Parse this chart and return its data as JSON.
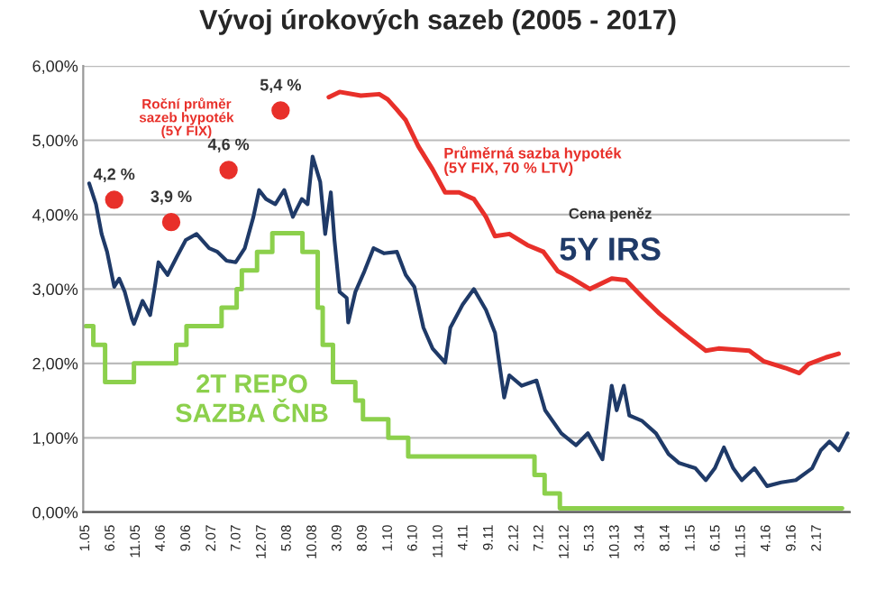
{
  "chart_data": {
    "type": "line",
    "title": "Vývoj úrokových sazeb (2005 - 2017)",
    "xlim": [
      "2004-12-17",
      "2017-08-16"
    ],
    "xticks": [
      {
        "value": "2005-01",
        "label": "1.05"
      },
      {
        "value": "2005-06",
        "label": "6.05"
      },
      {
        "value": "2005-11",
        "label": "11.05"
      },
      {
        "value": "2006-04",
        "label": "4.06"
      },
      {
        "value": "2006-09",
        "label": "9.06"
      },
      {
        "value": "2007-02",
        "label": "2.07"
      },
      {
        "value": "2007-07",
        "label": "7.07"
      },
      {
        "value": "2007-12",
        "label": "12.07"
      },
      {
        "value": "2008-05",
        "label": "5.08"
      },
      {
        "value": "2008-10",
        "label": "10.08"
      },
      {
        "value": "2009-03",
        "label": "3.09"
      },
      {
        "value": "2009-08",
        "label": "8.09"
      },
      {
        "value": "2010-01",
        "label": "1.10"
      },
      {
        "value": "2010-06",
        "label": "6.10"
      },
      {
        "value": "2010-11",
        "label": "11.10"
      },
      {
        "value": "2011-04",
        "label": "4.11"
      },
      {
        "value": "2011-09",
        "label": "9.11"
      },
      {
        "value": "2012-02",
        "label": "2.12"
      },
      {
        "value": "2012-07",
        "label": "7.12"
      },
      {
        "value": "2012-12",
        "label": "12.12"
      },
      {
        "value": "2013-05",
        "label": "5.13"
      },
      {
        "value": "2013-10",
        "label": "10.13"
      },
      {
        "value": "2014-03",
        "label": "3.14"
      },
      {
        "value": "2014-08",
        "label": "8.14"
      },
      {
        "value": "2015-01",
        "label": "1.15"
      },
      {
        "value": "2015-06",
        "label": "6.15"
      },
      {
        "value": "2015-11",
        "label": "11.15"
      },
      {
        "value": "2016-04",
        "label": "4.16"
      },
      {
        "value": "2016-09",
        "label": "9.16"
      },
      {
        "value": "2017-02",
        "label": "2.17"
      }
    ],
    "ylim": [
      0,
      6
    ],
    "yticks": [
      {
        "value": 0,
        "label": "0,00%"
      },
      {
        "value": 1,
        "label": "1,00%"
      },
      {
        "value": 2,
        "label": "2,00%"
      },
      {
        "value": 3,
        "label": "3,00%"
      },
      {
        "value": 4,
        "label": "4,00%"
      },
      {
        "value": 5,
        "label": "5,00%"
      },
      {
        "value": 6,
        "label": "6,00%"
      }
    ],
    "grid": "y",
    "legend": false,
    "annotations": [
      "Cena peněz"
    ],
    "series": [
      {
        "name": "5Y IRS",
        "color": "#1f3a68",
        "x": [
          "2005-01-22",
          "2005-03-04",
          "2005-04-07",
          "2005-05-10",
          "2005-06-22",
          "2005-07-22",
          "2005-08-25",
          "2005-10-07",
          "2005-10-19",
          "2005-12-10",
          "2006-01-25",
          "2006-02-25",
          "2006-03-16",
          "2006-05-10",
          "2006-07-04",
          "2006-08-28",
          "2006-11-01",
          "2007-01-16",
          "2007-03-07",
          "2007-05-01",
          "2007-06-25",
          "2007-08-19",
          "2007-10-10",
          "2007-11-13",
          "2007-12-25",
          "2008-02-19",
          "2008-04-13",
          "2008-06-04",
          "2008-07-28",
          "2008-09-01",
          "2008-10-01",
          "2008-11-16",
          "2008-12-16",
          "2009-01-19",
          "2009-02-10",
          "2009-03-13",
          "2009-04-25",
          "2009-05-04",
          "2009-06-16",
          "2009-08-10",
          "2009-10-04",
          "2009-12-07",
          "2010-02-22",
          "2010-04-16",
          "2010-06-07",
          "2010-08-01",
          "2010-09-25",
          "2010-12-10",
          "2011-01-10",
          "2011-03-25",
          "2011-05-19",
          "2011-06-01",
          "2011-08-13",
          "2011-10-07",
          "2011-12-01",
          "2012-01-01",
          "2012-03-16",
          "2012-06-13",
          "2012-08-04",
          "2012-11-10",
          "2013-02-07",
          "2013-04-19",
          "2013-07-16",
          "2013-09-10",
          "2013-10-10",
          "2013-11-22",
          "2013-12-25",
          "2014-03-10",
          "2014-06-04",
          "2014-08-19",
          "2014-10-22",
          "2015-01-28",
          "2015-04-01",
          "2015-05-25",
          "2015-07-19",
          "2015-09-13",
          "2015-11-04",
          "2016-01-19",
          "2016-04-04",
          "2016-06-28",
          "2016-09-25",
          "2017-01-01",
          "2017-02-22",
          "2017-04-16",
          "2017-06-10",
          "2017-08-04"
        ],
        "values": [
          4.42,
          4.14,
          3.74,
          3.5,
          3.03,
          3.14,
          2.96,
          2.6,
          2.53,
          2.84,
          2.65,
          3.07,
          3.36,
          3.19,
          3.43,
          3.66,
          3.74,
          3.55,
          3.5,
          3.38,
          3.36,
          3.55,
          3.97,
          4.33,
          4.21,
          4.14,
          4.33,
          3.97,
          4.21,
          4.14,
          4.78,
          4.44,
          3.74,
          4.3,
          3.66,
          2.96,
          2.88,
          2.55,
          2.96,
          3.24,
          3.55,
          3.48,
          3.5,
          3.19,
          3.03,
          2.48,
          2.2,
          2.01,
          2.48,
          2.79,
          2.96,
          3.0,
          2.72,
          2.41,
          1.54,
          1.84,
          1.7,
          1.77,
          1.37,
          1.06,
          0.9,
          1.06,
          0.71,
          1.7,
          1.37,
          1.7,
          1.3,
          1.23,
          1.06,
          0.78,
          0.66,
          0.59,
          0.43,
          0.59,
          0.87,
          0.59,
          0.43,
          0.59,
          0.35,
          0.4,
          0.43,
          0.59,
          0.83,
          0.95,
          0.83,
          1.06
        ]
      },
      {
        "name": "2T REPO\nSAZBA ČNB",
        "color": "#8cd04c",
        "type": "step",
        "x": [
          "2005-01-01",
          "2005-02-16",
          "2005-04-28",
          "2005-10-19",
          "2006-07-01",
          "2006-09-01",
          "2007-04-01",
          "2007-07-01",
          "2007-08-01",
          "2007-11-01",
          "2008-02-01",
          "2008-08-01",
          "2008-11-01",
          "2008-12-01",
          "2009-02-01",
          "2009-06-16",
          "2009-08-01",
          "2010-01-01",
          "2010-05-01",
          "2012-06-01",
          "2012-08-01",
          "2012-11-01",
          "2017-07-01"
        ],
        "values": [
          2.5,
          2.25,
          1.75,
          2.0,
          2.25,
          2.5,
          2.75,
          3.0,
          3.25,
          3.5,
          3.75,
          3.5,
          2.75,
          2.25,
          1.75,
          1.5,
          1.25,
          1.0,
          0.75,
          0.5,
          0.25,
          0.05,
          0.05
        ]
      },
      {
        "name": "Průměrná sazba hypoték\n(5Y FIX, 70 % LTV)",
        "color": "#e8302a",
        "x": [
          "2009-01-07",
          "2009-03-13",
          "2009-07-19",
          "2009-11-07",
          "2009-12-28",
          "2010-02-22",
          "2010-04-16",
          "2010-07-01",
          "2010-09-25",
          "2010-12-10",
          "2011-03-04",
          "2011-06-01",
          "2011-08-13",
          "2011-10-07",
          "2012-01-01",
          "2012-04-19",
          "2012-07-25",
          "2012-10-19",
          "2013-01-16",
          "2013-05-01",
          "2013-09-10",
          "2013-12-04",
          "2014-03-19",
          "2014-06-25",
          "2014-11-13",
          "2015-04-01",
          "2015-06-16",
          "2015-12-19",
          "2016-03-13",
          "2016-07-22",
          "2016-10-16",
          "2016-12-10",
          "2017-03-25",
          "2017-06-10"
        ],
        "values": [
          5.58,
          5.65,
          5.6,
          5.62,
          5.55,
          5.41,
          5.27,
          4.92,
          4.61,
          4.3,
          4.3,
          4.21,
          3.97,
          3.71,
          3.74,
          3.59,
          3.5,
          3.24,
          3.14,
          3.0,
          3.14,
          3.12,
          2.88,
          2.67,
          2.41,
          2.17,
          2.2,
          2.17,
          2.03,
          1.94,
          1.87,
          1.99,
          2.08,
          2.13
        ]
      },
      {
        "name": "Roční průměr\nsazeb hypoték\n(5Y FIX)",
        "color": "#e8302a",
        "type": "scatter",
        "marker": "circle",
        "x": [
          "2005-06-22",
          "2006-06-01",
          "2007-05-13",
          "2008-03-22"
        ],
        "values": [
          4.2,
          3.9,
          4.6,
          5.4
        ],
        "value_labels": [
          "4,2 %",
          "3,9 %",
          "4,6 %",
          "5,4 %"
        ]
      }
    ]
  }
}
